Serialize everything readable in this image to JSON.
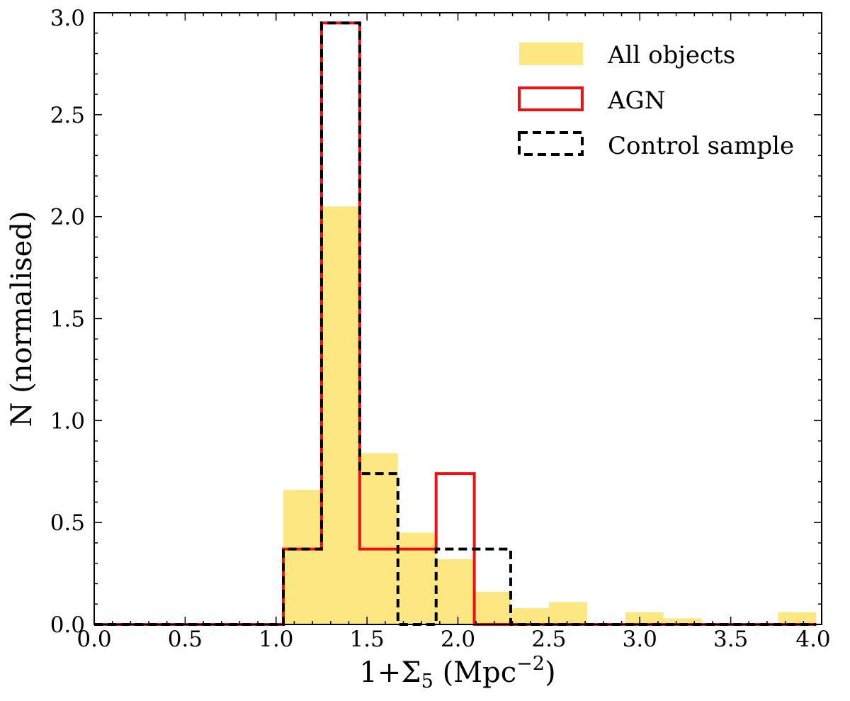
{
  "chart_data": {
    "type": "histogram",
    "xlabel": "1+Σ5 (Mpc⁻²)",
    "xlabel_parts": {
      "prefix": "1+Σ",
      "sub": "5",
      "unit_open": " (Mpc",
      "sup": "−2",
      "unit_close": ")"
    },
    "ylabel": "N (normalised)",
    "xlim": [
      0.0,
      4.0
    ],
    "ylim": [
      0.0,
      3.0
    ],
    "xticks": [
      "0.0",
      "0.5",
      "1.0",
      "1.5",
      "2.0",
      "2.5",
      "3.0",
      "3.5",
      "4.0"
    ],
    "yticks": [
      "0.0",
      "0.5",
      "1.0",
      "1.5",
      "2.0",
      "2.5",
      "3.0"
    ],
    "bin_edges": [
      0.0,
      0.2,
      0.4,
      0.6,
      0.8,
      1.04,
      1.25,
      1.46,
      1.67,
      1.88,
      2.09,
      2.29,
      2.5,
      2.71,
      2.92,
      3.13,
      3.34,
      3.55,
      3.76,
      3.97
    ],
    "series": [
      {
        "name": "All objects",
        "style": "filled",
        "color": "#fde782",
        "values": [
          0.0,
          0.0,
          0.0,
          0.0,
          0.0,
          0.66,
          2.05,
          0.84,
          0.45,
          0.32,
          0.16,
          0.08,
          0.11,
          0.0,
          0.06,
          0.03,
          0.0,
          0.0,
          0.06
        ]
      },
      {
        "name": "AGN",
        "style": "step-solid",
        "color": "#ee1111",
        "values": [
          0.0,
          0.0,
          0.0,
          0.0,
          0.0,
          0.37,
          2.95,
          0.37,
          0.37,
          0.74,
          0.0,
          0.0,
          0.0,
          0.0,
          0.0,
          0.0,
          0.0,
          0.0,
          0.0
        ]
      },
      {
        "name": "Control sample",
        "style": "step-dashed",
        "color": "#000000",
        "values": [
          0.0,
          0.0,
          0.0,
          0.0,
          0.0,
          0.37,
          2.95,
          0.74,
          0.0,
          0.37,
          0.37,
          0.0,
          0.0,
          0.0,
          0.0,
          0.0,
          0.0,
          0.0,
          0.0
        ]
      }
    ],
    "legend_position": "top-right"
  }
}
